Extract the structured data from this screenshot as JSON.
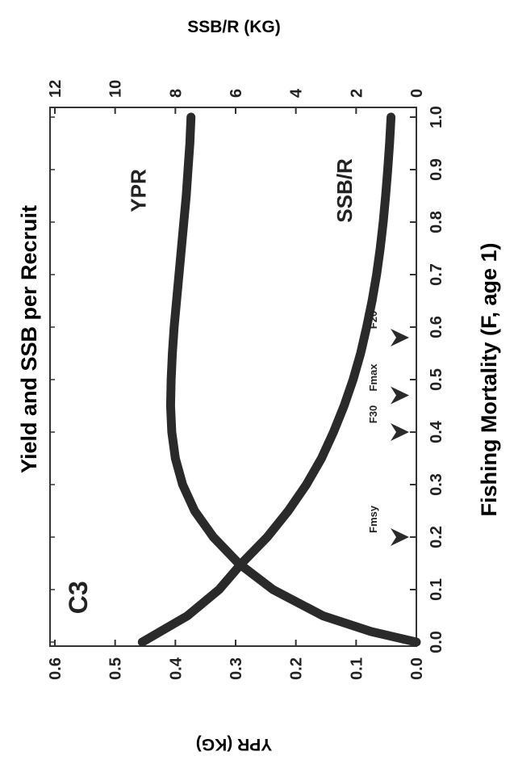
{
  "chart_data": {
    "type": "line",
    "title": "Yield and SSB per Recruit",
    "xlabel": "Fishing Mortality (F, age 1)",
    "ylabel": "YPR (KG)",
    "y2label": "SSB/R (KG)",
    "panel_label": "C3",
    "orientation": "rotated 90° counter-clockwise",
    "xlim": [
      0,
      1.0
    ],
    "ylim": [
      0,
      0.6
    ],
    "y2lim": [
      0,
      12
    ],
    "x_ticks": [
      "0.0",
      "0.1",
      "0.2",
      "0.3",
      "0.4",
      "0.5",
      "0.6",
      "0.7",
      "0.8",
      "0.9",
      "1.0"
    ],
    "y_ticks": [
      "0.0",
      "0.1",
      "0.2",
      "0.3",
      "0.4",
      "0.5",
      "0.6"
    ],
    "y2_ticks": [
      "0",
      "2",
      "4",
      "6",
      "8",
      "10",
      "12"
    ],
    "grid": false,
    "x": [
      0.0,
      0.02,
      0.05,
      0.1,
      0.15,
      0.2,
      0.25,
      0.3,
      0.35,
      0.4,
      0.45,
      0.5,
      0.55,
      0.6,
      0.65,
      0.7,
      0.75,
      0.8,
      0.85,
      0.9,
      0.95,
      1.0
    ],
    "series": [
      {
        "name": "YPR",
        "axis": "left",
        "color": "#2a2a2a",
        "values": [
          0.0,
          0.075,
          0.155,
          0.238,
          0.295,
          0.337,
          0.368,
          0.388,
          0.4,
          0.406,
          0.408,
          0.407,
          0.405,
          0.402,
          0.398,
          0.394,
          0.39,
          0.386,
          0.382,
          0.379,
          0.376,
          0.374
        ]
      },
      {
        "name": "SSB/R",
        "axis": "right",
        "color": "#2a2a2a",
        "values": [
          9.1,
          8.5,
          7.6,
          6.55,
          5.8,
          4.95,
          4.25,
          3.65,
          3.15,
          2.75,
          2.4,
          2.1,
          1.85,
          1.65,
          1.47,
          1.32,
          1.2,
          1.1,
          1.02,
          0.95,
          0.89,
          0.84
        ]
      }
    ],
    "reference_points": [
      {
        "label": "Fmsy",
        "x": 0.2
      },
      {
        "label": "F30",
        "x": 0.4
      },
      {
        "label": "Fmax",
        "x": 0.47
      },
      {
        "label": "F20",
        "x": 0.58
      }
    ]
  }
}
